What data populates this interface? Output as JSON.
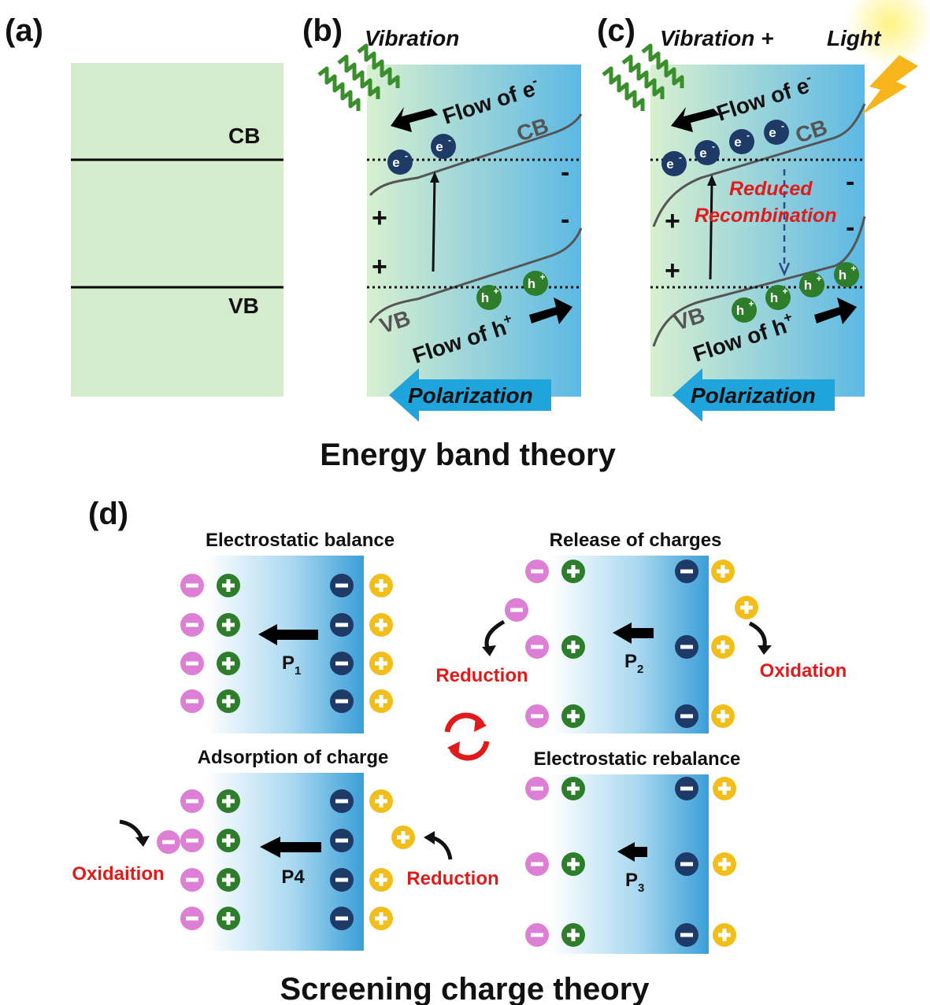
{
  "panel_labels": {
    "a": "(a)",
    "b": "(b)",
    "c": "(c)",
    "d": "(d)"
  },
  "panel_a": {
    "cb": "CB",
    "vb": "VB"
  },
  "panel_b": {
    "stimulus": "Vibration",
    "flow_e_text": "Flow of e",
    "flow_h_text": "Flow of h",
    "cb": "CB",
    "vb": "VB",
    "polarization": "Polarization",
    "plus": "+",
    "minus": "-"
  },
  "panel_c": {
    "stimulus_1": "Vibration +",
    "stimulus_2": "Light",
    "flow_e_text": "Flow of e",
    "flow_h_text": "Flow of h",
    "cb": "CB",
    "vb": "VB",
    "reduced": "Reduced",
    "recombination": "Recombination",
    "polarization": "Polarization",
    "plus": "+",
    "minus": "-"
  },
  "carriers": {
    "electron": "e",
    "electron_sup": "-",
    "hole": "h",
    "hole_sup": "+"
  },
  "section_titles": {
    "energy_band": "Energy band theory",
    "screening": "Screening charge theory"
  },
  "panel_d": {
    "q1_title": "Electrostatic balance",
    "q2_title": "Release of charges",
    "q3_title": "Electrostatic rebalance",
    "q4_title": "Adsorption of charge",
    "p1": "P",
    "p1_sub": "1",
    "p2": "P",
    "p2_sub": "2",
    "p3": "P",
    "p3_sub": "3",
    "p4": "P4",
    "reduction": "Reduction",
    "oxidation": "Oxidation",
    "oxidaition": "Oxidaition"
  },
  "colors": {
    "band_bg": "#d4eccc",
    "green_fade": "#d8f0d0",
    "blue": "#5cb8e4",
    "navy": "#1e3a66",
    "dark_green": "#2e7d2a",
    "pink": "#dd7fd4",
    "gold": "#f2be1c",
    "red_text": "#e01b1b",
    "arrow_blue": "#1fa4dc"
  }
}
